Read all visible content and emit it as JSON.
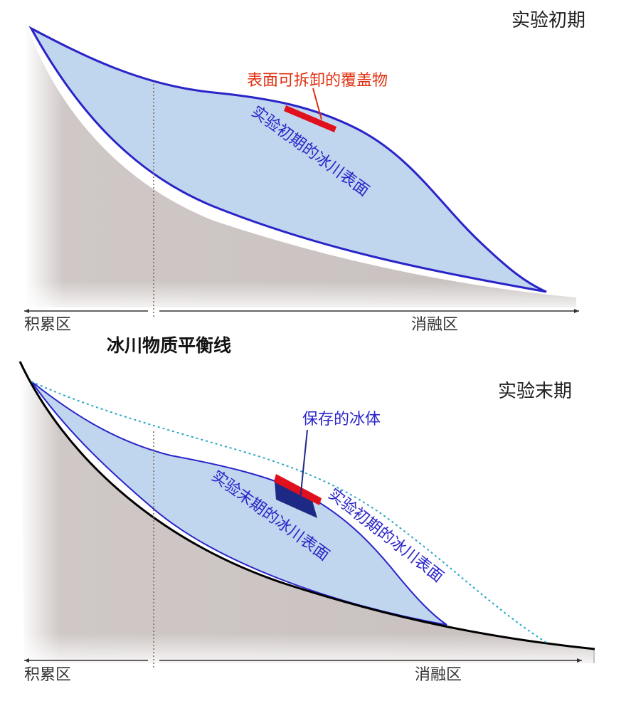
{
  "top_panel": {
    "title": "实验初期",
    "cover_label": "表面可拆卸的覆盖物",
    "surface_label": "实验初期的冰川表面",
    "zone_left": "积累区",
    "zone_right": "消融区"
  },
  "equilibrium_line_label": "冰川物质平衡线",
  "bottom_panel": {
    "title": "实验末期",
    "preserved_label": "保存的冰体",
    "late_surface_label": "实验末期的冰川表面",
    "early_surface_label": "实验初期的冰川表面",
    "zone_left": "积累区",
    "zone_right": "消融区"
  },
  "colors": {
    "ground": "#c9c2c0",
    "ice": "#c0d6ee",
    "glacier_outline": "#2a24c8",
    "cover": "#e0101e",
    "preserved_ice": "#1c2a86",
    "early_surface_dotted": "#2aa7c8",
    "callout_red": "#e03010",
    "callout_blue": "#2a24c8",
    "equilibrium_dotted": "#8a6a50"
  }
}
